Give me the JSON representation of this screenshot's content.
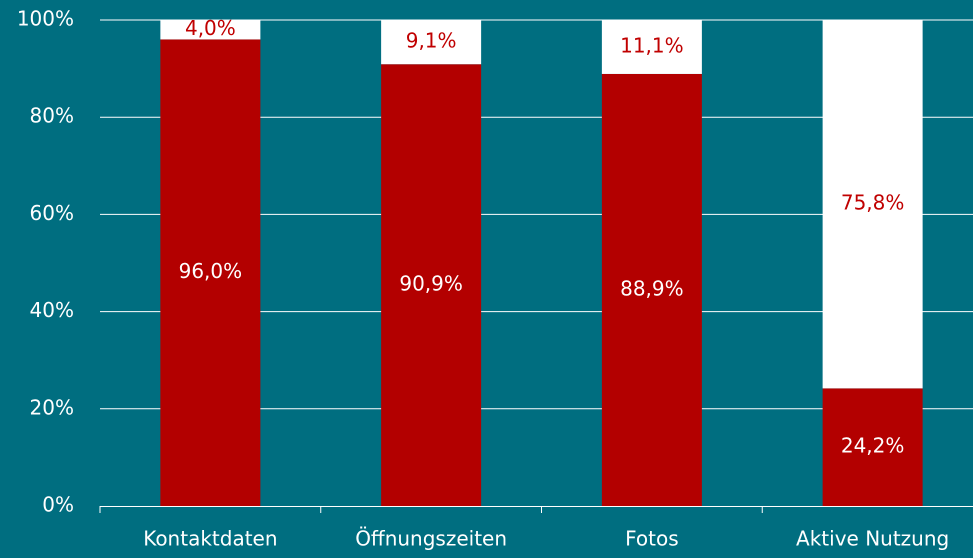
{
  "chart_data": {
    "type": "stacked_bar",
    "categories": [
      "Kontaktdaten",
      "Öffnungszeiten",
      "Fotos",
      "Aktive Nutzung"
    ],
    "series": [
      {
        "color": "#b30000",
        "label_color": "#ffffff",
        "values": [
          96.0,
          90.9,
          88.9,
          24.2
        ],
        "value_labels": [
          "96,0%",
          "90,9%",
          "88,9%",
          "24,2%"
        ]
      },
      {
        "color": "#ffffff",
        "label_color": "#c00000",
        "values": [
          4.0,
          9.1,
          11.1,
          75.8
        ],
        "value_labels": [
          "4,0%",
          "9,1%",
          "11,1%",
          "75,8%"
        ]
      }
    ],
    "ylim": [
      0,
      100
    ],
    "yticks": [
      {
        "value": 0,
        "label": "0%"
      },
      {
        "value": 20,
        "label": "20%"
      },
      {
        "value": 40,
        "label": "40%"
      },
      {
        "value": 60,
        "label": "60%"
      },
      {
        "value": 80,
        "label": "80%"
      },
      {
        "value": 100,
        "label": "100%"
      }
    ],
    "grid": true
  }
}
